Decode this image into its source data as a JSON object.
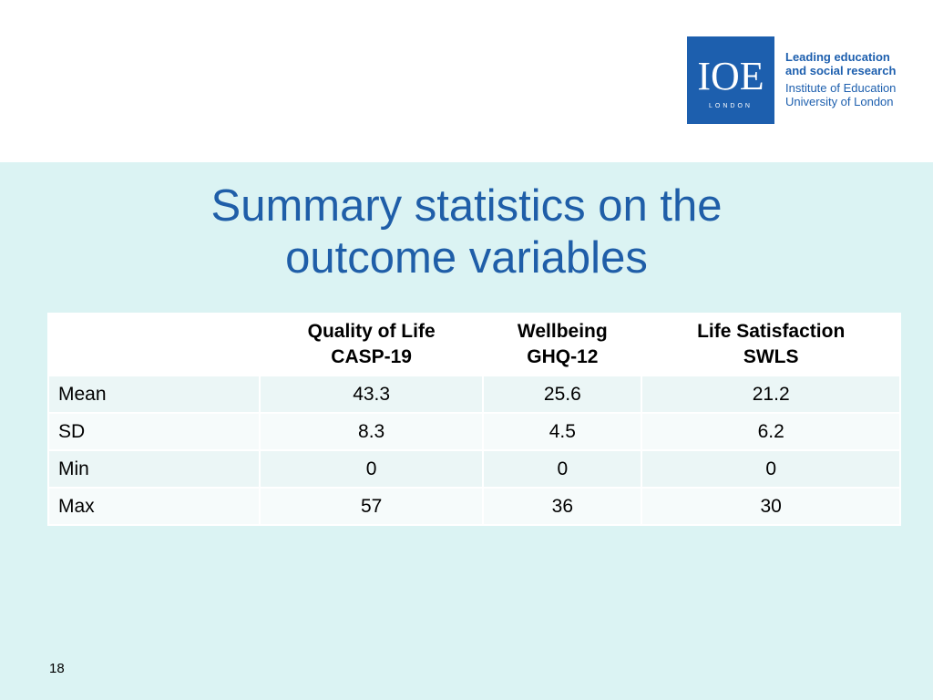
{
  "logo": {
    "mark": "IOE",
    "sub": "LONDON",
    "tagline_bold": [
      "Leading education",
      "and social research"
    ],
    "tagline_regular": [
      "Institute of Education",
      "University of London"
    ],
    "color": "#1d5fae"
  },
  "slide": {
    "title_line1": "Summary statistics on the",
    "title_line2": "outcome variables",
    "number": "18"
  },
  "table": {
    "headers": [
      {
        "line1": "Quality of Life",
        "line2": "CASP-19"
      },
      {
        "line1": "Wellbeing",
        "line2": "GHQ-12"
      },
      {
        "line1": "Life Satisfaction",
        "line2": "SWLS"
      }
    ],
    "rows": [
      {
        "label": "Mean",
        "values": [
          "43.3",
          "25.6",
          "21.2"
        ]
      },
      {
        "label": "SD",
        "values": [
          "8.3",
          "4.5",
          "6.2"
        ]
      },
      {
        "label": "Min",
        "values": [
          "0",
          "0",
          "0"
        ]
      },
      {
        "label": "Max",
        "values": [
          "57",
          "36",
          "30"
        ]
      }
    ]
  },
  "colors": {
    "background": "#dbf3f3",
    "title": "#1f5ea8"
  }
}
